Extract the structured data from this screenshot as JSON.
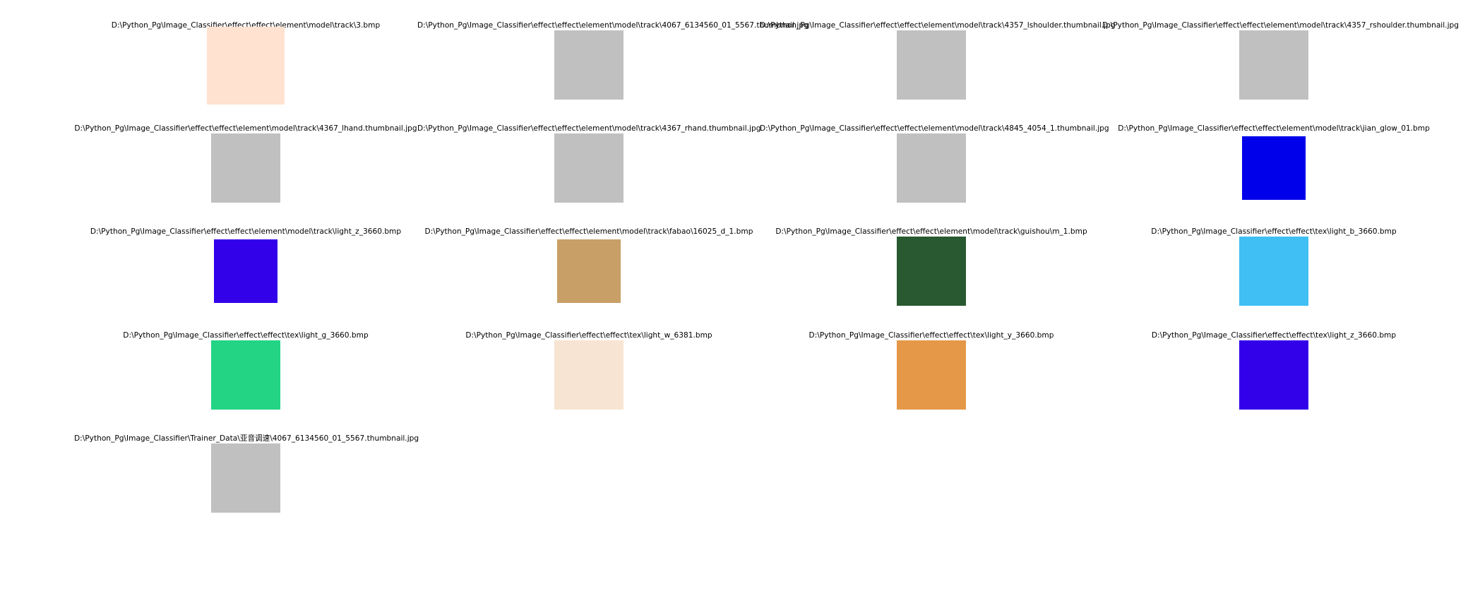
{
  "items": [
    {
      "path": "D:\\Python_Pg\\Image_Classifier\\effect\\effect\\element\\model\\track\\3.bmp",
      "color": "#ffe2cf",
      "thumb": "wide"
    },
    {
      "path": "D:\\Python_Pg\\Image_Classifier\\effect\\effect\\element\\model\\track\\4067_6134560_01_5567.thumbnail.jpg",
      "color": "#c0c0c0",
      "thumb": "square"
    },
    {
      "path": "D:\\Python_Pg\\Image_Classifier\\effect\\effect\\element\\model\\track\\4357_lshoulder.thumbnail.jpg",
      "color": "#c0c0c0",
      "thumb": "square"
    },
    {
      "path": "D:\\Python_Pg\\Image_Classifier\\effect\\effect\\element\\model\\track\\4357_rshoulder.thumbnail.jpg",
      "color": "#c0c0c0",
      "thumb": "square"
    },
    {
      "path": "D:\\Python_Pg\\Image_Classifier\\effect\\effect\\element\\model\\track\\4367_lhand.thumbnail.jpg",
      "color": "#c0c0c0",
      "thumb": "square"
    },
    {
      "path": "D:\\Python_Pg\\Image_Classifier\\effect\\effect\\element\\model\\track\\4367_rhand.thumbnail.jpg",
      "color": "#c0c0c0",
      "thumb": "square"
    },
    {
      "path": "D:\\Python_Pg\\Image_Classifier\\effect\\effect\\element\\model\\track\\4845_4054_1.thumbnail.jpg",
      "color": "#c0c0c0",
      "thumb": "square"
    },
    {
      "path": "D:\\Python_Pg\\Image_Classifier\\effect\\effect\\element\\model\\track\\jian_glow_01.bmp",
      "color": "#0000ea",
      "thumb": "small"
    },
    {
      "path": "D:\\Python_Pg\\Image_Classifier\\effect\\effect\\element\\model\\track\\light_z_3660.bmp",
      "color": "#3300ea",
      "thumb": "small"
    },
    {
      "path": "D:\\Python_Pg\\Image_Classifier\\effect\\effect\\element\\model\\track\\fabao\\16025_d_1.bmp",
      "color": "#c89f66",
      "thumb": "small"
    },
    {
      "path": "D:\\Python_Pg\\Image_Classifier\\effect\\effect\\element\\model\\track\\guishou\\m_1.bmp",
      "color": "#285930",
      "thumb": "square"
    },
    {
      "path": "D:\\Python_Pg\\Image_Classifier\\effect\\effect\\tex\\light_b_3660.bmp",
      "color": "#3fbff4",
      "thumb": "square"
    },
    {
      "path": "D:\\Python_Pg\\Image_Classifier\\effect\\effect\\tex\\light_g_3660.bmp",
      "color": "#22d484",
      "thumb": "square"
    },
    {
      "path": "D:\\Python_Pg\\Image_Classifier\\effect\\effect\\tex\\light_w_6381.bmp",
      "color": "#f7e4d2",
      "thumb": "square"
    },
    {
      "path": "D:\\Python_Pg\\Image_Classifier\\effect\\effect\\tex\\light_y_3660.bmp",
      "color": "#e59847",
      "thumb": "square"
    },
    {
      "path": "D:\\Python_Pg\\Image_Classifier\\effect\\effect\\tex\\light_z_3660.bmp",
      "color": "#3300ea",
      "thumb": "square"
    },
    {
      "path": "D:\\Python_Pg\\Image_Classifier\\Trainer_Data\\亚音调速\\4067_6134560_01_5567.thumbnail.jpg",
      "color": "#c0c0c0",
      "thumb": "square"
    }
  ]
}
